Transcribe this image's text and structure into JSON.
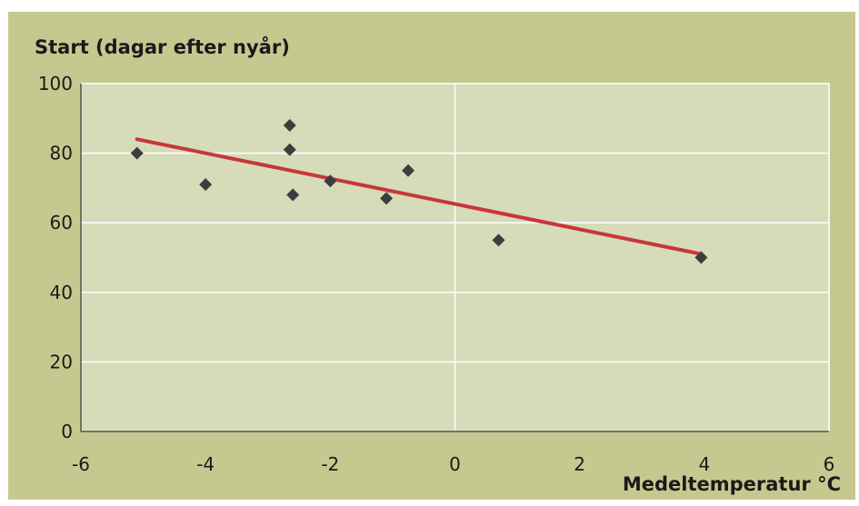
{
  "chart_data": {
    "type": "scatter",
    "title": "",
    "ylabel": "Start (dagar efter nyår)",
    "xlabel": "Medeltemperatur °C",
    "xlim": [
      -6,
      6
    ],
    "ylim": [
      0,
      100
    ],
    "xticks": [
      -6,
      -4,
      -2,
      0,
      2,
      4,
      6
    ],
    "yticks": [
      0,
      20,
      40,
      60,
      80,
      100
    ],
    "grid": true,
    "legend": "none",
    "colors": {
      "frame": "#c6c98f",
      "plot_area": "#d6dbb9",
      "grid": "#ffffff",
      "marker": "#3d3d3d",
      "trendline": "#c8363a"
    },
    "series": [
      {
        "values": [
          {
            "x": -5.1,
            "y": 80
          },
          {
            "x": -4.0,
            "y": 71
          },
          {
            "x": -2.65,
            "y": 88
          },
          {
            "x": -2.65,
            "y": 81
          },
          {
            "x": -2.6,
            "y": 68
          },
          {
            "x": -2.0,
            "y": 72
          },
          {
            "x": -1.1,
            "y": 67
          },
          {
            "x": -0.75,
            "y": 75
          },
          {
            "x": 0.7,
            "y": 55
          },
          {
            "x": 3.95,
            "y": 50
          }
        ]
      }
    ],
    "trendline": {
      "x": [
        -5.1,
        3.95
      ],
      "y": [
        84,
        51
      ]
    }
  }
}
